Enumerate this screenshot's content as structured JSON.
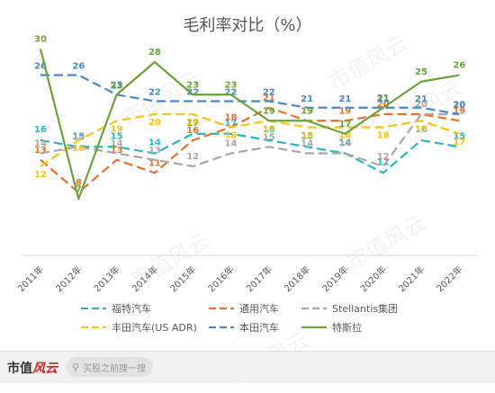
{
  "brand": {
    "name": "市值",
    "accent": "风云"
  },
  "footer": {
    "search_text": "买股之前搜一搜",
    "search_icon": "search-icon"
  },
  "watermark_text": "市值风云",
  "chart_data": {
    "type": "line",
    "title": "毛利率对比（%）",
    "xlabel": "",
    "ylabel": "",
    "categories": [
      "2011年",
      "2012年",
      "2013年",
      "2014年",
      "2015年",
      "2016年",
      "2017年",
      "2018年",
      "2019年",
      "2020年",
      "2021年",
      "2022年"
    ],
    "ylim": [
      0,
      34
    ],
    "grid": false,
    "legend_position": "bottom",
    "series": [
      {
        "name": "福特汽车",
        "color": "#2bb5c2",
        "dashed": true,
        "values": [
          16,
          15,
          15,
          14,
          17,
          17,
          16,
          15,
          14,
          11,
          16,
          15
        ],
        "labels": [
          "16",
          "15",
          "15",
          "14",
          "17",
          "17",
          "16",
          "15",
          "14",
          "11",
          "16",
          "15"
        ]
      },
      {
        "name": "通用汽车",
        "color": "#e8712a",
        "dashed": true,
        "values": [
          13,
          8,
          13,
          11,
          16,
          18,
          21,
          19,
          19,
          20,
          20,
          19
        ],
        "labels": [
          "13",
          "8",
          "13",
          "11",
          "16",
          "18",
          "21",
          "19",
          "19",
          "20",
          "20",
          "19"
        ]
      },
      {
        "name": "Stellantis集团",
        "color": "#a7a7a7",
        "dashed": true,
        "values": [
          14,
          15,
          14,
          13,
          12,
          14,
          15,
          14,
          14,
          12,
          20,
          20
        ],
        "labels": [
          "14",
          "15",
          "14",
          "13",
          "12",
          "14",
          "15",
          "14",
          "14",
          "12",
          "20",
          "20"
        ]
      },
      {
        "name": "丰田汽车(US ADR)",
        "color": "#f8c21a",
        "dashed": true,
        "values": [
          12,
          16,
          19,
          20,
          20,
          18,
          19,
          18,
          18,
          18,
          19,
          17
        ],
        "labels": [
          "12",
          "16",
          "19",
          "20",
          "20",
          "18",
          "19",
          "18",
          "18",
          "18",
          "19",
          "17"
        ]
      },
      {
        "name": "本田汽车",
        "color": "#4a87c8",
        "dashed": true,
        "values": [
          26,
          26,
          23,
          22,
          22,
          22,
          22,
          21,
          21,
          21,
          21,
          20
        ],
        "labels": [
          "26",
          "26",
          "23",
          "22",
          "22",
          "22",
          "22",
          "21",
          "21",
          "21",
          "21",
          "20"
        ]
      },
      {
        "name": "特斯拉",
        "color": "#6aa23b",
        "dashed": false,
        "values": [
          30,
          7,
          23,
          28,
          23,
          23,
          19,
          19,
          17,
          21,
          25,
          26
        ],
        "labels": [
          "30",
          "7",
          "23",
          "28",
          "23",
          "23",
          "19",
          "19",
          "17",
          "21",
          "25",
          "26"
        ]
      }
    ]
  }
}
